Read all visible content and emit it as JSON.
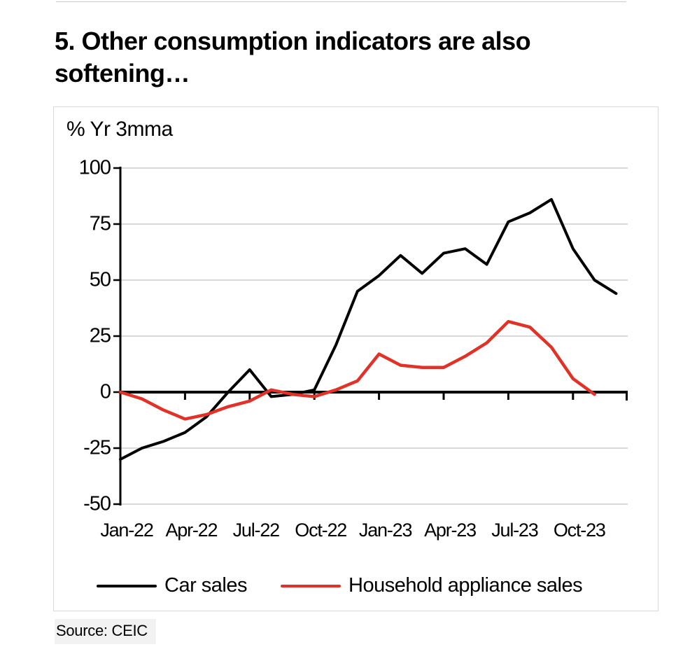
{
  "title": "5. Other consumption indicators are also softening…",
  "y_axis_unit": "% Yr 3mma",
  "source_note": "Source: CEIC",
  "legend": {
    "items": [
      {
        "label": "Car sales",
        "color": "#000000"
      },
      {
        "label": "Household appliance sales",
        "color": "#e23227"
      }
    ]
  },
  "chart_data": {
    "type": "line",
    "title": "5. Other consumption indicators are also softening…",
    "ylabel": "% Yr 3mma",
    "xlabel": "",
    "ylim": [
      -50,
      100
    ],
    "yticks": [
      100,
      75,
      50,
      25,
      0,
      -25,
      -50
    ],
    "xtick_labels": [
      "Jan-22",
      "Apr-22",
      "Jul-22",
      "Oct-22",
      "Jan-23",
      "Apr-23",
      "Jul-23",
      "Oct-23"
    ],
    "x": [
      "Jan-22",
      "Feb-22",
      "Mar-22",
      "Apr-22",
      "May-22",
      "Jun-22",
      "Jul-22",
      "Aug-22",
      "Sep-22",
      "Oct-22",
      "Nov-22",
      "Dec-22",
      "Jan-23",
      "Feb-23",
      "Mar-23",
      "Apr-23",
      "May-23",
      "Jun-23",
      "Jul-23",
      "Aug-23",
      "Sep-23",
      "Oct-23",
      "Nov-23",
      "Dec-23"
    ],
    "series": [
      {
        "name": "Car sales",
        "color": "#000000",
        "values": [
          -30,
          -25,
          -22,
          -18,
          -11,
          0,
          10,
          -2,
          -1,
          1,
          21,
          45,
          52,
          61,
          53,
          62,
          64,
          57,
          76,
          80,
          86,
          64,
          50,
          44
        ]
      },
      {
        "name": "Household appliance sales",
        "color": "#e23227",
        "values": [
          0,
          -3,
          -8,
          -12,
          -10,
          -6.5,
          -4,
          1,
          -1,
          -2,
          1,
          5,
          17,
          12,
          11,
          11,
          16,
          22,
          31.5,
          29,
          20,
          6,
          -1
        ]
      }
    ],
    "grid": "horizontal",
    "gridline_color": "#d9d9d9",
    "legend_position": "bottom",
    "source": "CEIC"
  }
}
